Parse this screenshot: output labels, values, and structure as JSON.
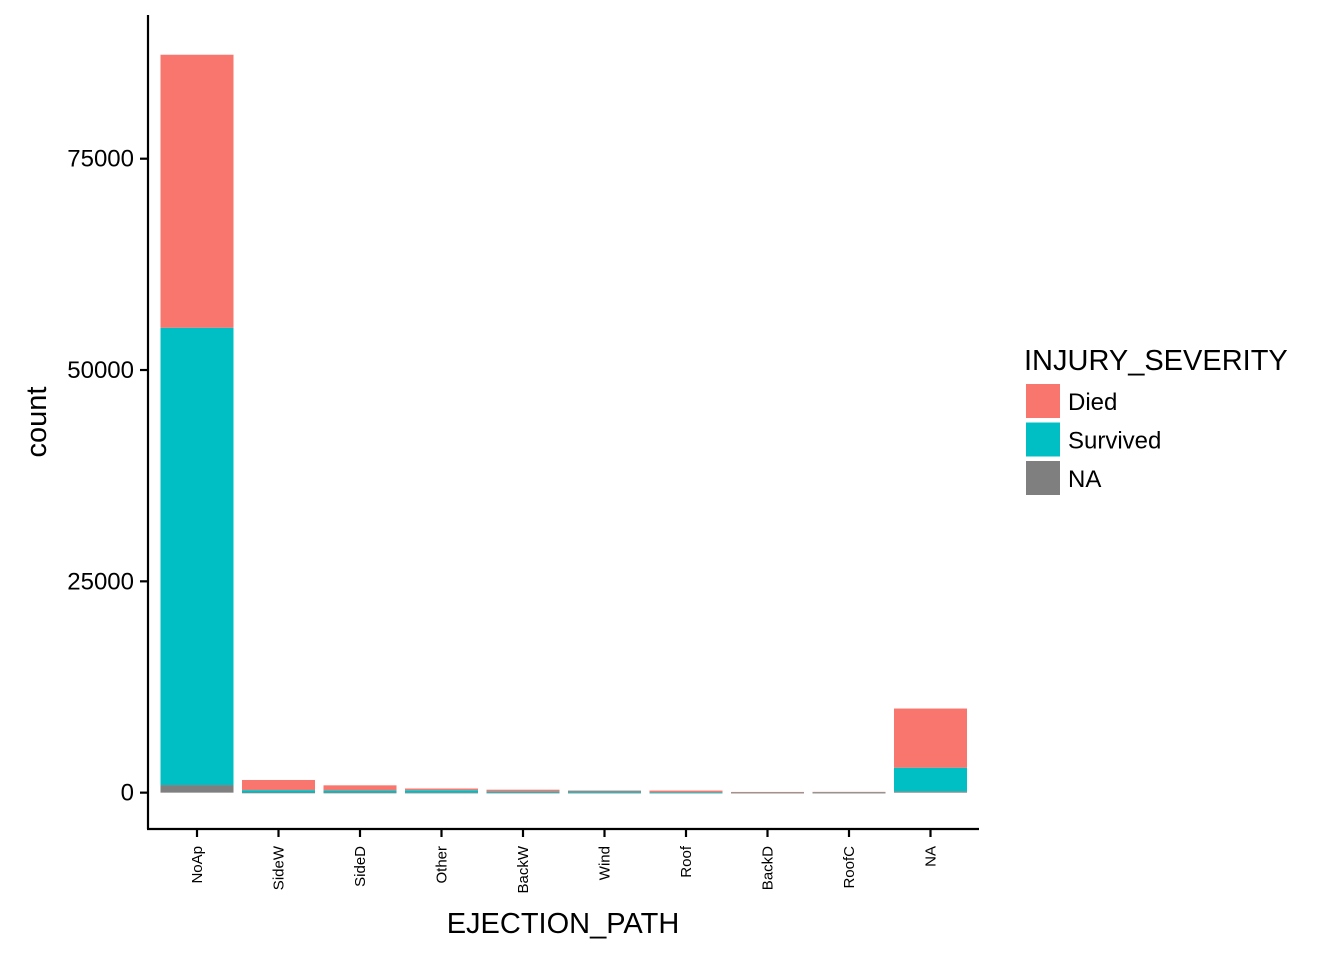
{
  "chart_data": {
    "type": "bar",
    "stacked": true,
    "xlabel": "EJECTION_PATH",
    "ylabel": "count",
    "categories": [
      "NoAp",
      "SideW",
      "SideD",
      "Other",
      "BackW",
      "Wind",
      "Roof",
      "BackD",
      "RoofC",
      "NA"
    ],
    "yticks": [
      0,
      25000,
      50000,
      75000
    ],
    "ylim": [
      -4300,
      92000
    ],
    "grid": false,
    "legend": {
      "title": "INJURY_SEVERITY",
      "placement": "right",
      "entries": [
        "Died",
        "Survived",
        "NA"
      ]
    },
    "series": [
      {
        "name": "NA",
        "color": "#7f7f7f",
        "values": [
          900,
          20,
          15,
          10,
          10,
          5,
          5,
          5,
          5,
          150
        ]
      },
      {
        "name": "Survived",
        "color": "#00bfc4",
        "values": [
          54100,
          280,
          250,
          280,
          140,
          200,
          60,
          40,
          40,
          2800
        ]
      },
      {
        "name": "Died",
        "color": "#f8766d",
        "values": [
          32300,
          1200,
          600,
          200,
          200,
          50,
          180,
          40,
          50,
          7000
        ]
      }
    ]
  }
}
